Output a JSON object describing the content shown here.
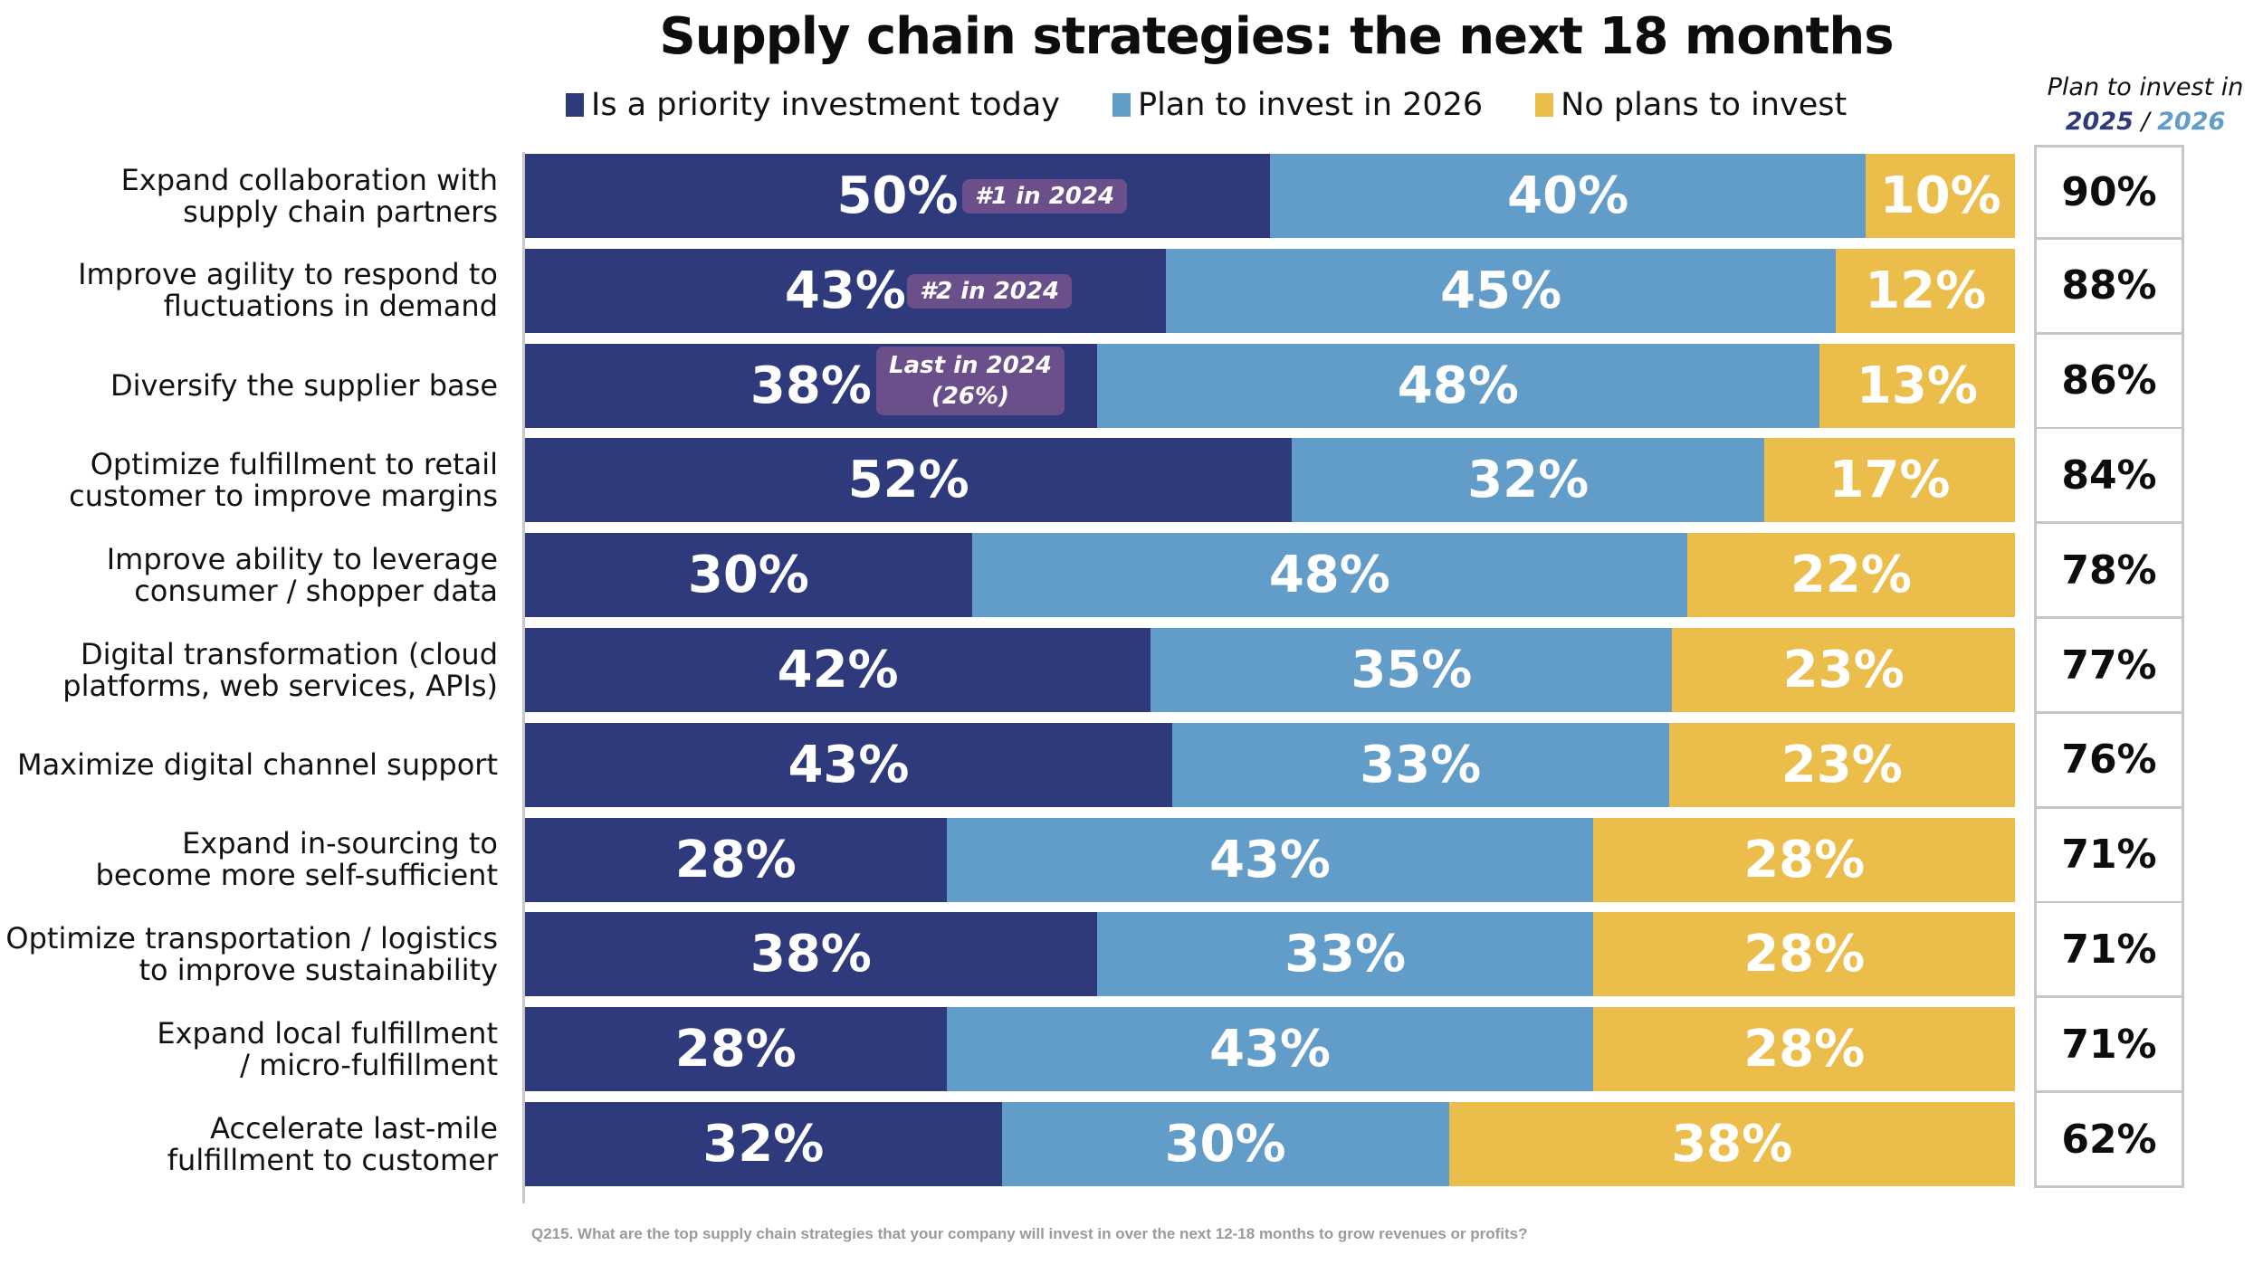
{
  "title": "Supply chain strategies: the next 18 months",
  "footnote": "Q215. What are the top supply chain strategies that your company will invest in over the next 12-18 months to grow revenues or profits?",
  "plan_header": {
    "line1": "Plan to invest in",
    "year_a": "2025",
    "separator": " / ",
    "year_b": "2026"
  },
  "colors": {
    "priority": "#2E3A7B",
    "plan2026": "#629CC8",
    "noplans": "#EBBD4A",
    "annotation": "#6B4F8A"
  },
  "chart_data": {
    "type": "bar",
    "orientation": "horizontal",
    "stacked": true,
    "title": "Supply chain strategies: the next 18 months",
    "xlabel": "",
    "ylabel": "",
    "xlim": [
      0,
      100
    ],
    "grid": false,
    "legend_position": "top",
    "legend": [
      "Is a priority investment today",
      "Plan to invest in 2026",
      "No plans to invest"
    ],
    "categories": [
      [
        "Expand collaboration with",
        "supply chain partners"
      ],
      [
        "Improve agility to respond to",
        "fluctuations in demand"
      ],
      [
        "Diversify the supplier base"
      ],
      [
        "Optimize fulfillment to retail",
        "customer to improve margins"
      ],
      [
        "Improve ability to leverage",
        "consumer / shopper data"
      ],
      [
        "Digital transformation (cloud",
        "platforms, web services, APIs)"
      ],
      [
        "Maximize digital channel support"
      ],
      [
        "Expand in-sourcing to",
        "become more self-sufficient"
      ],
      [
        "Optimize transportation / logistics",
        "to improve sustainability"
      ],
      [
        "Expand local fulfillment",
        "/ micro-fulfillment"
      ],
      [
        "Accelerate last-mile",
        "fulfillment to customer"
      ]
    ],
    "series": [
      {
        "name": "Is a priority investment today",
        "values": [
          50,
          43,
          38,
          52,
          30,
          42,
          43,
          28,
          38,
          28,
          32
        ]
      },
      {
        "name": "Plan to invest in 2026",
        "values": [
          40,
          45,
          48,
          32,
          48,
          35,
          33,
          43,
          33,
          43,
          30
        ]
      },
      {
        "name": "No plans to invest",
        "values": [
          10,
          12,
          13,
          17,
          22,
          23,
          23,
          28,
          28,
          28,
          38
        ]
      }
    ],
    "totals_label": "Plan to invest in 2025 / 2026",
    "totals": [
      90,
      88,
      86,
      84,
      78,
      77,
      76,
      71,
      71,
      71,
      62
    ],
    "annotations": [
      {
        "row": 0,
        "lines": [
          "#1 in 2024"
        ]
      },
      {
        "row": 1,
        "lines": [
          "#2 in 2024"
        ]
      },
      {
        "row": 2,
        "lines": [
          "Last in 2024",
          "(26%)"
        ]
      }
    ]
  }
}
